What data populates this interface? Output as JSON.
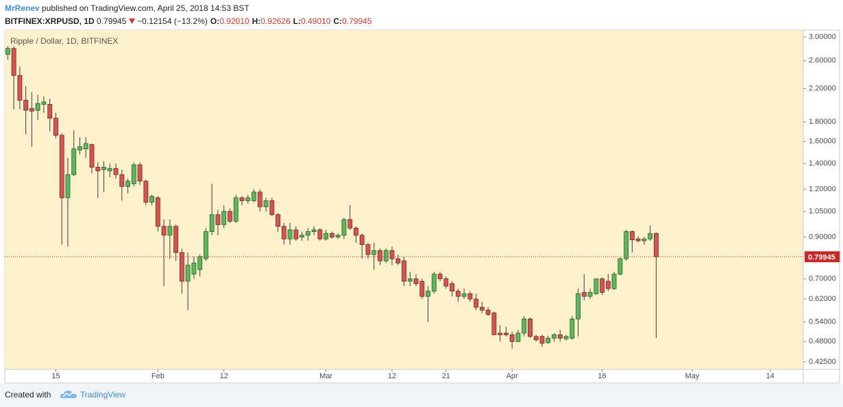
{
  "header": {
    "author": "MrRenev",
    "published": "published on TradingView.com, April 25, 2018 14:53 BST",
    "symbol": "BITFINEX:XRPUSD, 1D",
    "last": "0.79945",
    "change": "−0.12154 (−13.2%)",
    "ohlc": [
      {
        "label": "O:",
        "value": "0.92010"
      },
      {
        "label": "H:",
        "value": "0.92626"
      },
      {
        "label": "L:",
        "value": "0.49010"
      },
      {
        "label": "C:",
        "value": "0.79945"
      }
    ]
  },
  "chart_data": {
    "type": "candlestick",
    "title": "Ripple / Dollar, 1D, BITFINEX",
    "log_scale": true,
    "grid": false,
    "up_color": "#5cb85c",
    "down_color": "#d9534f",
    "up_border": "#245c24",
    "down_border": "#6e2420",
    "wick_color": "#3a3a3a",
    "background": "#fdf1cc",
    "x": [
      "01-07",
      "01-08",
      "01-09",
      "01-10",
      "01-11",
      "01-12",
      "01-13",
      "01-14",
      "01-15",
      "01-16",
      "01-17",
      "01-18",
      "01-19",
      "01-20",
      "01-21",
      "01-22",
      "01-23",
      "01-24",
      "01-25",
      "01-26",
      "01-27",
      "01-28",
      "01-29",
      "01-30",
      "01-31",
      "02-01",
      "02-02",
      "02-03",
      "02-04",
      "02-05",
      "02-06",
      "02-07",
      "02-08",
      "02-09",
      "02-10",
      "02-11",
      "02-12",
      "02-13",
      "02-14",
      "02-15",
      "02-16",
      "02-17",
      "02-18",
      "02-19",
      "02-20",
      "02-21",
      "02-22",
      "02-23",
      "02-24",
      "02-25",
      "02-26",
      "02-27",
      "02-28",
      "03-01",
      "03-02",
      "03-03",
      "03-04",
      "03-05",
      "03-06",
      "03-07",
      "03-08",
      "03-09",
      "03-10",
      "03-11",
      "03-12",
      "03-13",
      "03-14",
      "03-15",
      "03-16",
      "03-17",
      "03-18",
      "03-19",
      "03-20",
      "03-21",
      "03-22",
      "03-23",
      "03-24",
      "03-25",
      "03-26",
      "03-27",
      "03-28",
      "03-29",
      "03-30",
      "03-31",
      "04-01",
      "04-02",
      "04-03",
      "04-04",
      "04-05",
      "04-06",
      "04-07",
      "04-08",
      "04-09",
      "04-10",
      "04-11",
      "04-12",
      "04-13",
      "04-14",
      "04-15",
      "04-16",
      "04-17",
      "04-18",
      "04-19",
      "04-20",
      "04-21",
      "04-22",
      "04-23",
      "04-24",
      "04-25"
    ],
    "series": {
      "open": [
        2.7,
        2.8,
        2.38,
        2.05,
        1.95,
        1.93,
        2.0,
        2.0,
        1.84,
        1.66,
        1.14,
        1.31,
        1.52,
        1.53,
        1.57,
        1.37,
        1.35,
        1.34,
        1.36,
        1.31,
        1.22,
        1.24,
        1.39,
        1.26,
        1.11,
        1.14,
        0.96,
        0.91,
        0.96,
        0.82,
        0.69,
        0.72,
        0.74,
        0.79,
        0.93,
        1.03,
        0.97,
        1.05,
        0.99,
        1.14,
        1.12,
        1.12,
        1.18,
        1.08,
        1.12,
        1.03,
        0.96,
        0.89,
        0.94,
        0.9,
        0.91,
        0.93,
        0.94,
        0.89,
        0.92,
        0.9,
        0.91,
        1.0,
        0.95,
        0.91,
        0.86,
        0.81,
        0.83,
        0.78,
        0.83,
        0.79,
        0.78,
        0.69,
        0.7,
        0.69,
        0.63,
        0.65,
        0.72,
        0.7,
        0.68,
        0.65,
        0.63,
        0.64,
        0.62,
        0.59,
        0.58,
        0.57,
        0.505,
        0.505,
        0.5,
        0.48,
        0.505,
        0.55,
        0.495,
        0.495,
        0.477,
        0.49,
        0.5,
        0.488,
        0.49,
        0.55,
        0.645,
        0.63,
        0.64,
        0.7,
        0.69,
        0.66,
        0.72,
        0.79,
        0.93,
        0.89,
        0.88,
        0.89,
        0.9201
      ],
      "high": [
        2.84,
        2.84,
        2.51,
        2.23,
        2.15,
        2.12,
        2.1,
        2.07,
        1.9,
        1.68,
        1.45,
        1.71,
        1.64,
        1.64,
        1.58,
        1.41,
        1.42,
        1.4,
        1.4,
        1.35,
        1.28,
        1.41,
        1.41,
        1.27,
        1.16,
        1.15,
        1.0,
        1.0,
        0.97,
        0.84,
        0.82,
        0.8,
        0.81,
        0.95,
        1.24,
        1.06,
        1.09,
        1.07,
        1.16,
        1.15,
        1.16,
        1.2,
        1.2,
        1.14,
        1.14,
        1.04,
        0.98,
        0.98,
        0.96,
        0.93,
        0.95,
        0.96,
        0.95,
        0.94,
        0.93,
        0.92,
        1.01,
        1.09,
        0.96,
        0.92,
        0.87,
        0.87,
        0.84,
        0.84,
        0.85,
        0.81,
        0.8,
        0.73,
        0.72,
        0.7,
        0.67,
        0.73,
        0.73,
        0.71,
        0.69,
        0.66,
        0.66,
        0.65,
        0.64,
        0.61,
        0.59,
        0.575,
        0.53,
        0.525,
        0.51,
        0.515,
        0.56,
        0.555,
        0.5,
        0.5,
        0.497,
        0.505,
        0.515,
        0.5,
        0.56,
        0.66,
        0.72,
        0.66,
        0.7,
        0.705,
        0.72,
        0.73,
        0.795,
        0.94,
        0.935,
        0.905,
        0.9,
        0.965,
        0.92626
      ],
      "low": [
        2.62,
        1.94,
        1.94,
        1.67,
        1.55,
        1.82,
        1.9,
        1.7,
        1.63,
        0.86,
        0.85,
        1.3,
        1.48,
        1.45,
        1.32,
        1.14,
        1.18,
        1.29,
        1.28,
        1.12,
        1.17,
        1.22,
        1.23,
        1.09,
        1.09,
        0.93,
        0.67,
        0.79,
        0.78,
        0.64,
        0.58,
        0.7,
        0.71,
        0.78,
        0.91,
        0.91,
        0.95,
        0.98,
        0.98,
        1.09,
        1.1,
        1.11,
        1.05,
        1.05,
        1.02,
        0.93,
        0.86,
        0.86,
        0.88,
        0.88,
        0.88,
        0.91,
        0.88,
        0.88,
        0.89,
        0.89,
        0.89,
        0.94,
        0.87,
        0.79,
        0.79,
        0.74,
        0.76,
        0.77,
        0.76,
        0.76,
        0.67,
        0.67,
        0.67,
        0.62,
        0.54,
        0.64,
        0.69,
        0.66,
        0.63,
        0.61,
        0.62,
        0.61,
        0.58,
        0.57,
        0.56,
        0.5,
        0.48,
        0.495,
        0.46,
        0.478,
        0.495,
        0.49,
        0.48,
        0.465,
        0.473,
        0.48,
        0.48,
        0.483,
        0.485,
        0.495,
        0.615,
        0.62,
        0.635,
        0.635,
        0.65,
        0.655,
        0.715,
        0.78,
        0.82,
        0.872,
        0.86,
        0.88,
        0.4901
      ],
      "close": [
        2.8,
        2.38,
        2.05,
        1.93,
        1.92,
        2.01,
        2.03,
        1.84,
        1.66,
        1.14,
        1.31,
        1.53,
        1.55,
        1.58,
        1.37,
        1.34,
        1.37,
        1.36,
        1.31,
        1.22,
        1.26,
        1.39,
        1.26,
        1.11,
        1.15,
        0.96,
        0.91,
        0.96,
        0.82,
        0.69,
        0.76,
        0.77,
        0.8,
        0.93,
        1.03,
        0.97,
        1.05,
        0.99,
        1.14,
        1.12,
        1.14,
        1.18,
        1.08,
        1.12,
        1.03,
        0.96,
        0.89,
        0.94,
        0.89,
        0.91,
        0.93,
        0.94,
        0.89,
        0.92,
        0.9,
        0.91,
        1.0,
        0.95,
        0.91,
        0.86,
        0.81,
        0.83,
        0.78,
        0.83,
        0.79,
        0.77,
        0.69,
        0.7,
        0.68,
        0.63,
        0.65,
        0.72,
        0.7,
        0.67,
        0.65,
        0.63,
        0.64,
        0.62,
        0.59,
        0.58,
        0.565,
        0.5,
        0.5,
        0.5,
        0.48,
        0.505,
        0.55,
        0.495,
        0.485,
        0.475,
        0.49,
        0.5,
        0.49,
        0.495,
        0.55,
        0.64,
        0.63,
        0.645,
        0.7,
        0.645,
        0.66,
        0.72,
        0.79,
        0.93,
        0.885,
        0.88,
        0.89,
        0.92,
        0.79945
      ]
    },
    "price_line": {
      "value": 0.79945,
      "label": "0.79945",
      "color": "#c62828"
    },
    "xlim": [
      "01-07",
      "05-19"
    ],
    "xticks": [
      {
        "value": "01-15",
        "label": "15"
      },
      {
        "value": "02-01",
        "label": "Feb"
      },
      {
        "value": "02-12",
        "label": "12"
      },
      {
        "value": "03-01",
        "label": "Mar"
      },
      {
        "value": "03-12",
        "label": "12"
      },
      {
        "value": "03-21",
        "label": "21"
      },
      {
        "value": "04-01",
        "label": "Apr"
      },
      {
        "value": "04-16",
        "label": "16"
      },
      {
        "value": "05-01",
        "label": "May"
      },
      {
        "value": "05-14",
        "label": "14"
      }
    ],
    "ylim": [
      0.406,
      3.126
    ],
    "yticks": [
      {
        "value": 3,
        "label": "3.00000"
      },
      {
        "value": 2.6,
        "label": "2.60000"
      },
      {
        "value": 2.2,
        "label": "2.20000"
      },
      {
        "value": 1.8,
        "label": "1.80000"
      },
      {
        "value": 1.6,
        "label": "1.60000"
      },
      {
        "value": 1.4,
        "label": "1.40000"
      },
      {
        "value": 1.2,
        "label": "1.20000"
      },
      {
        "value": 1.05,
        "label": "1.05000"
      },
      {
        "value": 0.9,
        "label": "0.90000"
      },
      {
        "value": 0.7,
        "label": "0.70000"
      },
      {
        "value": 0.62,
        "label": "0.62000"
      },
      {
        "value": 0.54,
        "label": "0.54000"
      },
      {
        "value": 0.48,
        "label": "0.48000"
      },
      {
        "value": 0.425,
        "label": "0.42500"
      }
    ]
  },
  "footer": {
    "created": "Created with",
    "brand": "TradingView"
  }
}
